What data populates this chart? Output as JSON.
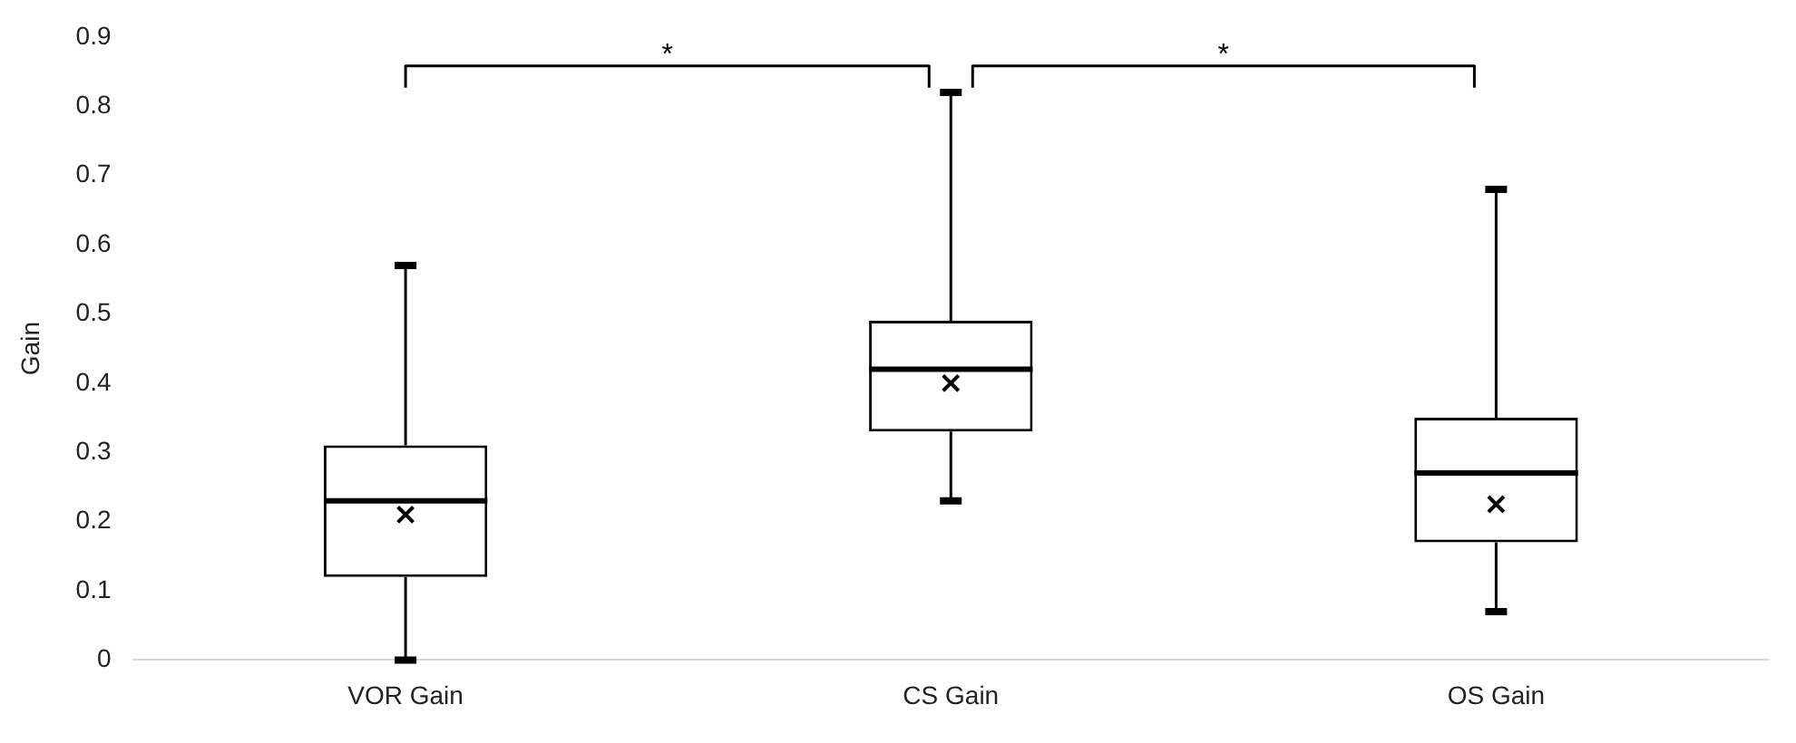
{
  "chart_data": {
    "type": "box",
    "ylabel": "Gain",
    "categories": [
      "VOR Gain",
      "CS Gain",
      "OS Gain"
    ],
    "boxes": [
      {
        "low": 0,
        "q1": 0.12,
        "median": 0.23,
        "q3": 0.31,
        "high": 0.57,
        "mean": 0.21
      },
      {
        "low": 0.23,
        "q1": 0.33,
        "median": 0.42,
        "q3": 0.49,
        "high": 0.82,
        "mean": 0.4
      },
      {
        "low": 0.07,
        "q1": 0.17,
        "median": 0.27,
        "q3": 0.35,
        "high": 0.68,
        "mean": 0.225
      }
    ],
    "color": "#000000",
    "ylim": [
      0,
      0.9
    ],
    "yticks": [
      0,
      0.1,
      0.2,
      0.3,
      0.4,
      0.5,
      0.6,
      0.7,
      0.8,
      0.9
    ],
    "grid": false,
    "legend": false,
    "annotations": [
      "*",
      "*"
    ]
  }
}
